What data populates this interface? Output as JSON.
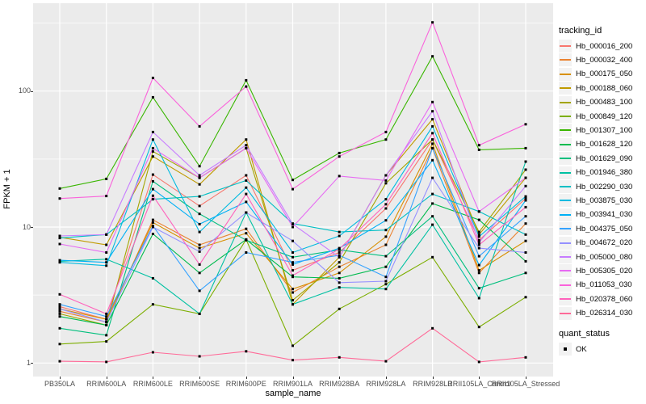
{
  "chart_data": {
    "type": "line",
    "title": "",
    "xlabel": "sample_name",
    "ylabel": "FPKM + 1",
    "y_scale": "log10",
    "y_ticks": [
      1,
      10,
      100
    ],
    "y_minor_ticks": [
      3.162,
      31.623,
      316.228
    ],
    "ylim": [
      0.93,
      430
    ],
    "grid": true,
    "legend_position": "right",
    "panel_bg": "#EBEBEB",
    "grid_color": "#FFFFFF",
    "point_marker": {
      "shape": "square",
      "color": "#000000",
      "size": 3
    },
    "categories": [
      "PB350LA",
      "RRIM600LA",
      "RRIM600LE",
      "RRIM600SE",
      "RRIM600PE",
      "RRIM901LA",
      "RRIM928BA",
      "RRIM928LA",
      "RRIM928LB",
      "RRII105LA_Control",
      "RRII105LA_Stressed"
    ],
    "series": [
      {
        "name": "Hb_000016_200",
        "color": "#F8766D",
        "values": [
          2.6,
          2.1,
          24.3,
          14.3,
          24,
          4.8,
          6.5,
          13.7,
          44,
          8,
          16.2
        ]
      },
      {
        "name": "Hb_000032_400",
        "color": "#EA8331",
        "values": [
          2.4,
          2,
          11.3,
          7.4,
          9.7,
          3.3,
          5.1,
          7.4,
          38,
          4.6,
          10.6
        ]
      },
      {
        "name": "Hb_000175_050",
        "color": "#D89000",
        "values": [
          2.5,
          2.1,
          10.8,
          7,
          9,
          3.5,
          4.6,
          8.5,
          41,
          4.8,
          7.9
        ]
      },
      {
        "name": "Hb_000188_060",
        "color": "#C09B00",
        "values": [
          8.4,
          7.4,
          33,
          20.6,
          44,
          2.7,
          6,
          24,
          62,
          8.8,
          23
        ]
      },
      {
        "name": "Hb_000483_100",
        "color": "#A3A500",
        "values": [
          2.3,
          1.9,
          36,
          23,
          38,
          2.9,
          5.5,
          21,
          44,
          9.2,
          26.4
        ]
      },
      {
        "name": "Hb_000849_120",
        "color": "#7CAE00",
        "values": [
          1.38,
          1.44,
          2.7,
          2.3,
          8.1,
          1.34,
          2.5,
          3.8,
          6,
          1.84,
          3.05
        ]
      },
      {
        "name": "Hb_001307_100",
        "color": "#39B600",
        "values": [
          19.2,
          22.6,
          90,
          28,
          120,
          22.2,
          35,
          44,
          180,
          37,
          38
        ]
      },
      {
        "name": "Hb_001628_120",
        "color": "#00BB4E",
        "values": [
          2.2,
          1.9,
          8.9,
          4.6,
          8.1,
          4.3,
          4.2,
          5.1,
          14.9,
          11.3,
          5.6
        ]
      },
      {
        "name": "Hb_001629_090",
        "color": "#00BF7D",
        "values": [
          1.8,
          1.6,
          21.7,
          12.5,
          8,
          6,
          6.8,
          6.1,
          12,
          3.55,
          4.6
        ]
      },
      {
        "name": "Hb_001946_380",
        "color": "#00C1A3",
        "values": [
          5.6,
          5.8,
          4.2,
          2.3,
          12.8,
          2.7,
          3.6,
          3.5,
          10.4,
          3,
          30.3
        ]
      },
      {
        "name": "Hb_002290_030",
        "color": "#00BFC4",
        "values": [
          8.3,
          8.8,
          16,
          16.8,
          22,
          10.6,
          9.2,
          9.5,
          17.5,
          13,
          8.8
        ]
      },
      {
        "name": "Hb_003875_030",
        "color": "#00BAE0",
        "values": [
          5.5,
          5.2,
          44,
          9.2,
          19.5,
          6.5,
          8.6,
          16,
          55,
          8.5,
          16.8
        ]
      },
      {
        "name": "Hb_003941_030",
        "color": "#00B0F6",
        "values": [
          5.7,
          5.5,
          19,
          10.5,
          15.3,
          5.3,
          7,
          11.2,
          31,
          5.25,
          15.7
        ]
      },
      {
        "name": "Hb_004375_050",
        "color": "#35A2FF",
        "values": [
          2.7,
          2.2,
          10.2,
          3.4,
          6.5,
          5.5,
          6.2,
          4.3,
          38,
          6.1,
          12
        ]
      },
      {
        "name": "Hb_004672_020",
        "color": "#9590FF",
        "values": [
          2.5,
          2,
          10,
          6.6,
          12.8,
          7.9,
          3.9,
          4,
          23,
          7,
          6.5
        ]
      },
      {
        "name": "Hb_005000_080",
        "color": "#C77CFF",
        "values": [
          8.6,
          8.8,
          50,
          24,
          40,
          10.5,
          6,
          24,
          71,
          7.7,
          20
        ]
      },
      {
        "name": "Hb_005305_020",
        "color": "#E76BF3",
        "values": [
          7.5,
          6.5,
          38,
          23,
          38,
          10,
          23.7,
          22,
          83,
          13,
          23
        ]
      },
      {
        "name": "Hb_011053_030",
        "color": "#FA62DB",
        "values": [
          16.2,
          16.9,
          125,
          55,
          108,
          19,
          33,
          50,
          320,
          40,
          57
        ]
      },
      {
        "name": "Hb_020378_060",
        "color": "#FF62BC",
        "values": [
          3.2,
          2.3,
          17,
          5.3,
          17.5,
          4.4,
          6.9,
          14.7,
          49,
          7.4,
          14
        ]
      },
      {
        "name": "Hb_026314_030",
        "color": "#FF6A98",
        "values": [
          1.03,
          1.02,
          1.2,
          1.12,
          1.22,
          1.05,
          1.1,
          1.03,
          1.8,
          1.02,
          1.1
        ]
      }
    ]
  },
  "axes": {
    "x_title": "sample_name",
    "y_title": "FPKM + 1"
  },
  "legend": {
    "tracking_title": "tracking_id",
    "quant_title": "quant_status",
    "quant_items": [
      {
        "label": "OK"
      }
    ]
  }
}
